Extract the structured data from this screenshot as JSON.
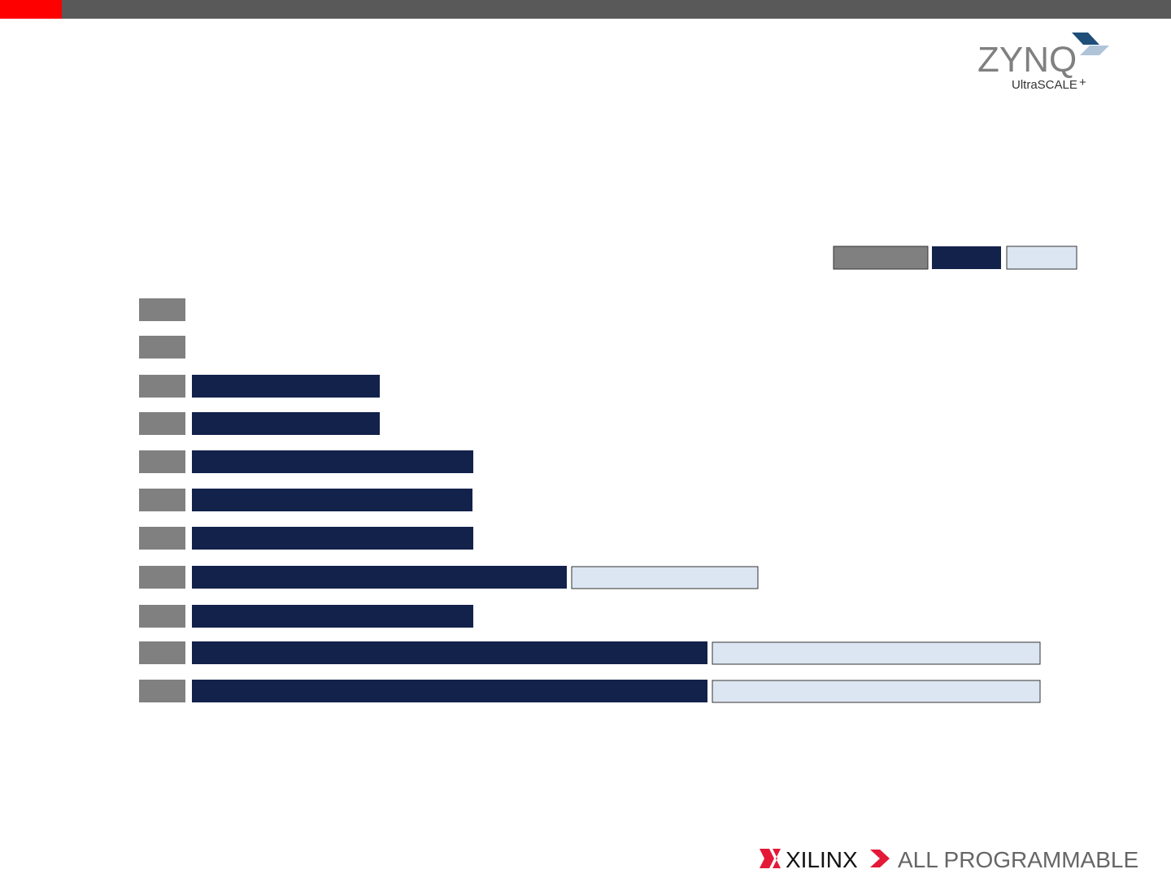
{
  "logo": {
    "name": "ZYNQ",
    "sub": "UltraSCALE",
    "plus": "+"
  },
  "footer": {
    "brand": "XILINX",
    "tagline": "ALL PROGRAMMABLE"
  }
}
